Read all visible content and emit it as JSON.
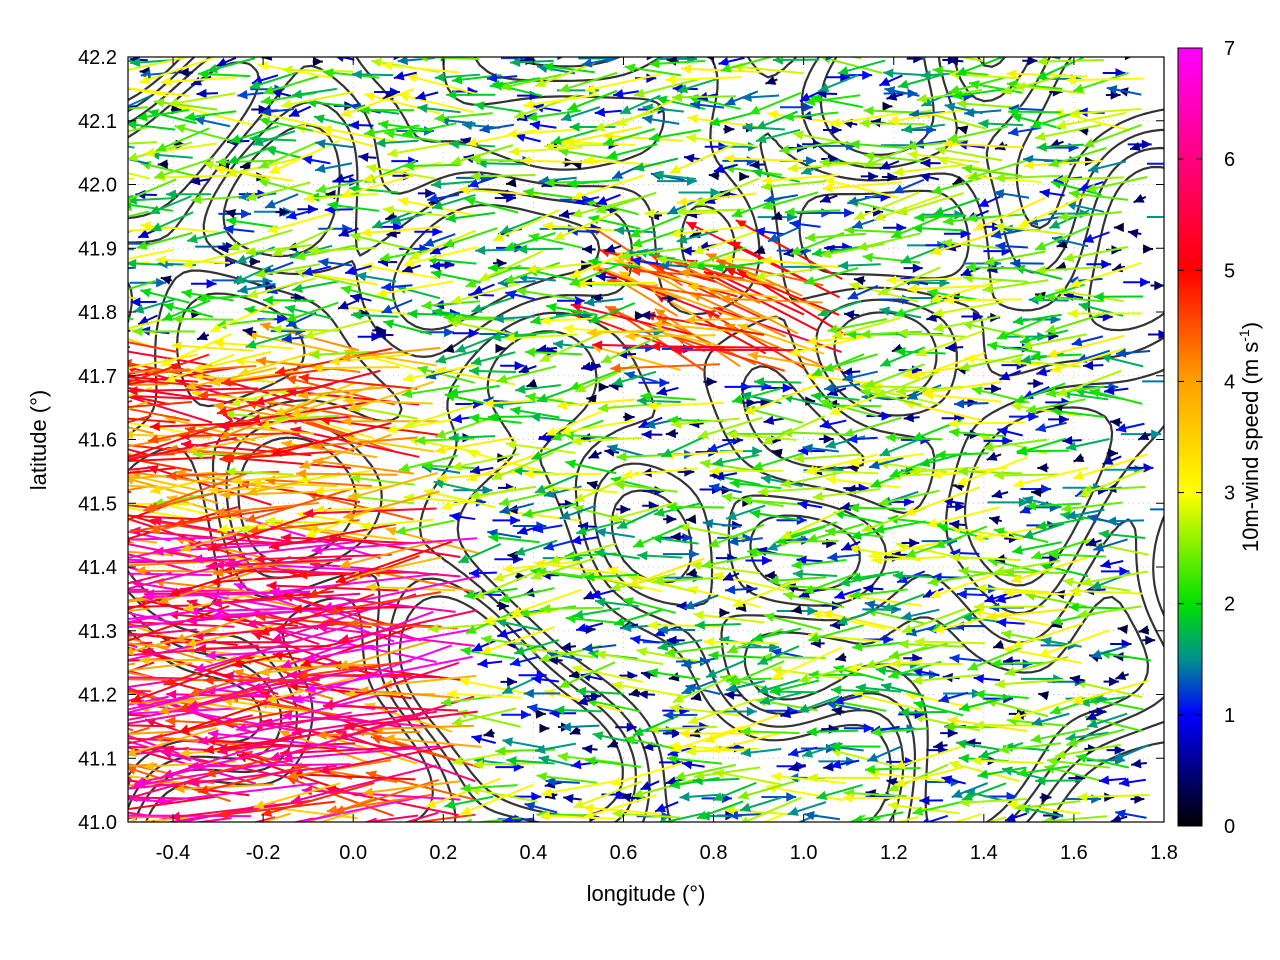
{
  "chart_data": {
    "type": "vector-field",
    "title": "",
    "xlabel": "longitude (°)",
    "ylabel": "latitude (°)",
    "xlim": [
      -0.5,
      1.8
    ],
    "ylim": [
      41.0,
      42.2
    ],
    "xticks": [
      -0.4,
      -0.2,
      0.0,
      0.2,
      0.4,
      0.6,
      0.8,
      1.0,
      1.2,
      1.4,
      1.6,
      1.8
    ],
    "xtick_labels": [
      "-0.4",
      "-0.2",
      "0.0",
      "0.2",
      "0.4",
      "0.6",
      "0.8",
      "1.0",
      "1.2",
      "1.4",
      "1.6",
      "1.8"
    ],
    "yticks": [
      41.0,
      41.1,
      41.2,
      41.3,
      41.4,
      41.5,
      41.6,
      41.7,
      41.8,
      41.9,
      42.0,
      42.1,
      42.2
    ],
    "ytick_labels": [
      "41.0",
      "41.1",
      "41.2",
      "41.3",
      "41.4",
      "41.5",
      "41.6",
      "41.7",
      "41.8",
      "41.9",
      "42.0",
      "42.1",
      "42.2"
    ],
    "grid": true,
    "colorbar": {
      "label_main": "10m-wind speed (m s",
      "label_sup": "-1",
      "label_end": ")",
      "range": [
        0,
        7
      ],
      "ticks": [
        0,
        1,
        2,
        3,
        4,
        5,
        6,
        7
      ],
      "tick_labels": [
        "0",
        "1",
        "2",
        "3",
        "4",
        "5",
        "6",
        "7"
      ],
      "colormap": [
        {
          "value": 0,
          "color": "#000000"
        },
        {
          "value": 1,
          "color": "#0000ff"
        },
        {
          "value": 1.5,
          "color": "#009090"
        },
        {
          "value": 2,
          "color": "#00e000"
        },
        {
          "value": 3,
          "color": "#ffff00"
        },
        {
          "value": 4,
          "color": "#ffa000"
        },
        {
          "value": 5,
          "color": "#ff0000"
        },
        {
          "value": 7,
          "color": "#ff00ff"
        }
      ]
    },
    "contour_color": "#333333",
    "wind_regions": [
      {
        "lon": [
          -0.5,
          0.3
        ],
        "lat": [
          41.0,
          41.45
        ],
        "speed": [
          3.5,
          7.0
        ],
        "dir_deg": 180
      },
      {
        "lon": [
          -0.5,
          0.2
        ],
        "lat": [
          41.45,
          41.75
        ],
        "speed": [
          2.5,
          5.5
        ],
        "dir_deg": 182
      },
      {
        "lon": [
          0.7,
          1.1
        ],
        "lat": [
          41.7,
          41.85
        ],
        "speed": [
          3.5,
          5.5
        ],
        "dir_deg": 165
      },
      {
        "lon": [
          -0.5,
          1.8
        ],
        "lat": [
          41.0,
          42.2
        ],
        "speed": [
          0.2,
          3.2
        ],
        "dir_deg": 185
      }
    ]
  }
}
